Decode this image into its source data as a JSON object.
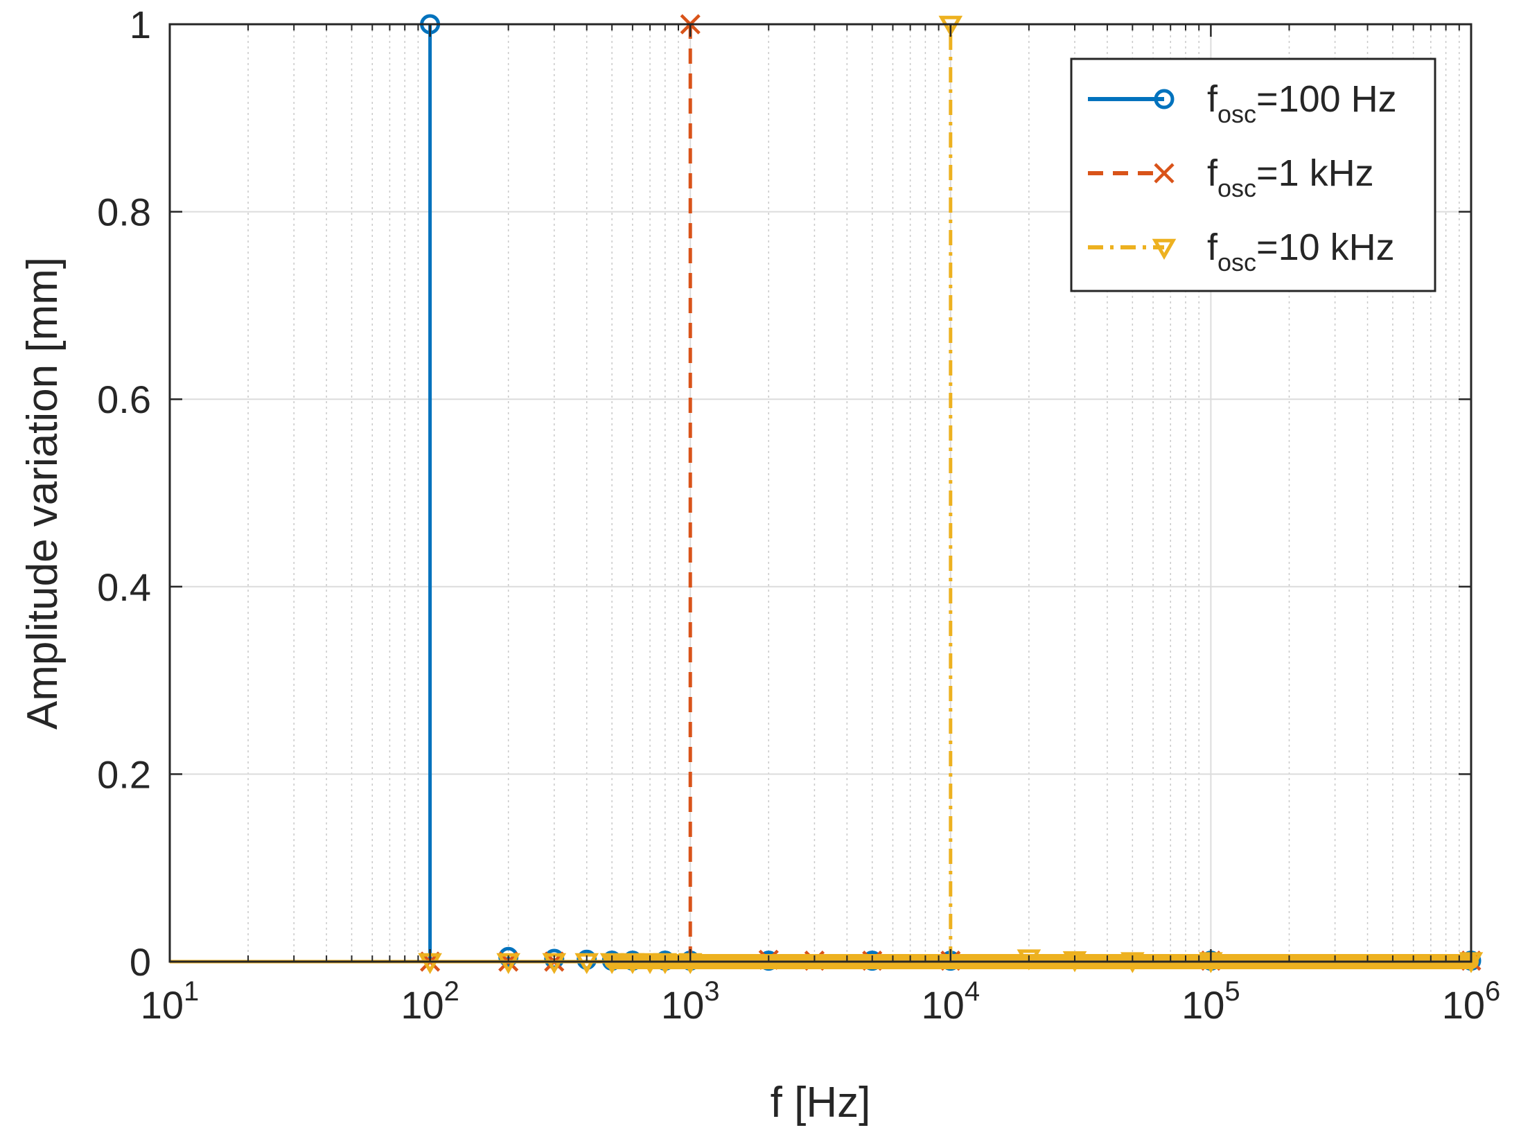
{
  "chart_data": {
    "type": "stem",
    "title": "",
    "xlabel": "f [Hz]",
    "ylabel": "Amplitude variation [mm]",
    "xscale": "log",
    "xlim": [
      10,
      1000000
    ],
    "ylim": [
      0,
      1
    ],
    "grid": true,
    "minor_grid": true,
    "legend_position": "top-right",
    "x_ticks": [
      {
        "base": "10",
        "exp": "1",
        "value": 10
      },
      {
        "base": "10",
        "exp": "2",
        "value": 100
      },
      {
        "base": "10",
        "exp": "3",
        "value": 1000
      },
      {
        "base": "10",
        "exp": "4",
        "value": 10000
      },
      {
        "base": "10",
        "exp": "5",
        "value": 100000
      },
      {
        "base": "10",
        "exp": "6",
        "value": 1000000
      }
    ],
    "y_ticks": [
      {
        "label": "0",
        "value": 0
      },
      {
        "label": "0.2",
        "value": 0.2
      },
      {
        "label": "0.4",
        "value": 0.4
      },
      {
        "label": "0.6",
        "value": 0.6
      },
      {
        "label": "0.8",
        "value": 0.8
      },
      {
        "label": "1",
        "value": 1
      }
    ],
    "series": [
      {
        "name": "f_osc=100 Hz",
        "legend_main": "f",
        "legend_sub": "osc",
        "legend_rest": "=100 Hz",
        "color": "#0072BD",
        "line_style": "solid",
        "marker": "circle",
        "points": [
          {
            "x": 100,
            "y": 1
          },
          {
            "x": 200,
            "y": 0.005
          },
          {
            "x": 300,
            "y": 0.003
          },
          {
            "x": 400,
            "y": 0.002
          },
          {
            "x": 500,
            "y": 0.001
          },
          {
            "x": 600,
            "y": 0.001
          },
          {
            "x": 800,
            "y": 0.001
          },
          {
            "x": 1000,
            "y": 0.001
          },
          {
            "x": 2000,
            "y": 0.001
          },
          {
            "x": 5000,
            "y": 0.001
          },
          {
            "x": 10000,
            "y": 0.001
          },
          {
            "x": 100000,
            "y": 0.001
          },
          {
            "x": 1000000,
            "y": 0.001
          }
        ]
      },
      {
        "name": "f_osc=1 kHz",
        "legend_main": "f",
        "legend_sub": "osc",
        "legend_rest": "=1 kHz",
        "color": "#D95319",
        "line_style": "dashed",
        "marker": "x",
        "points": [
          {
            "x": 100,
            "y": 0
          },
          {
            "x": 200,
            "y": 0
          },
          {
            "x": 300,
            "y": 0
          },
          {
            "x": 1000,
            "y": 1
          },
          {
            "x": 2000,
            "y": 0.002
          },
          {
            "x": 3000,
            "y": 0.001
          },
          {
            "x": 5000,
            "y": 0.001
          },
          {
            "x": 10000,
            "y": 0.001
          },
          {
            "x": 100000,
            "y": 0.001
          },
          {
            "x": 1000000,
            "y": 0.001
          }
        ]
      },
      {
        "name": "f_osc=10 kHz",
        "legend_main": "f",
        "legend_sub": "osc",
        "legend_rest": "=10 kHz",
        "color": "#EDB120",
        "line_style": "dashdot",
        "marker": "triangle-down",
        "points": [
          {
            "x": 100,
            "y": 0
          },
          {
            "x": 200,
            "y": 0
          },
          {
            "x": 300,
            "y": 0
          },
          {
            "x": 400,
            "y": 0
          },
          {
            "x": 500,
            "y": 0
          },
          {
            "x": 600,
            "y": 0
          },
          {
            "x": 700,
            "y": 0
          },
          {
            "x": 800,
            "y": 0
          },
          {
            "x": 1000,
            "y": 0
          },
          {
            "x": 10000,
            "y": 1
          },
          {
            "x": 20000,
            "y": 0.004
          },
          {
            "x": 30000,
            "y": 0.002
          },
          {
            "x": 50000,
            "y": 0.001
          },
          {
            "x": 100000,
            "y": 0.001
          },
          {
            "x": 1000000,
            "y": 0.001
          }
        ],
        "dense_band": {
          "from": 500,
          "to": 1000000
        }
      }
    ]
  }
}
